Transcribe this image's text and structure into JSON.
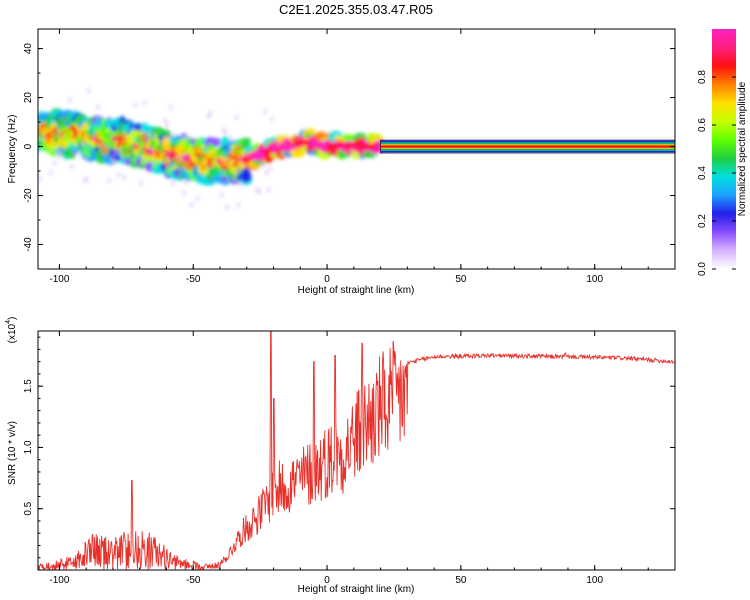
{
  "title": "C2E1.2025.355.03.47.R05",
  "chart_data": [
    {
      "type": "heatmap",
      "xlabel": "Height of straight line (km)",
      "ylabel": "Frequency (Hz)",
      "xlim": [
        -108,
        130
      ],
      "ylim": [
        -50,
        48
      ],
      "xticks": [
        -100,
        -50,
        0,
        50,
        100
      ],
      "yticks": [
        40,
        20,
        0,
        -20,
        -40
      ],
      "colorbar": {
        "label": "Normalized spectral amplitude",
        "range": [
          0,
          1
        ],
        "ticks": [
          "0.0",
          "0.2",
          "0.4",
          "0.6",
          "0.8"
        ],
        "colors": [
          "#ffffff",
          "#d6b3ff",
          "#8a4dff",
          "#2020e8",
          "#1ea0ff",
          "#00e0e0",
          "#20d040",
          "#60ff00",
          "#c8ff00",
          "#ffe000",
          "#ff8000",
          "#ff1010",
          "#ff2080",
          "#ff20c0"
        ]
      },
      "ridge": [
        {
          "x": -105,
          "y": 6
        },
        {
          "x": -95,
          "y": 5
        },
        {
          "x": -85,
          "y": 3
        },
        {
          "x": -75,
          "y": 2
        },
        {
          "x": -65,
          "y": -1
        },
        {
          "x": -55,
          "y": -4
        },
        {
          "x": -45,
          "y": -6
        },
        {
          "x": -35,
          "y": -6
        },
        {
          "x": -28,
          "y": -5
        },
        {
          "x": -20,
          "y": -1
        },
        {
          "x": -12,
          "y": 0.5
        },
        {
          "x": -8,
          "y": 1.5
        },
        {
          "x": 0,
          "y": 0.5
        },
        {
          "x": 10,
          "y": 0.3
        },
        {
          "x": 20,
          "y": 0
        },
        {
          "x": 130,
          "y": 0
        }
      ]
    },
    {
      "type": "line",
      "xlabel": "Height of straight line (km)",
      "ylabel": "SNR (10 * v/v)",
      "yscale_label": "(x10",
      "yscale_exp": "4",
      "yscale_close": ")",
      "xlim": [
        -108,
        130
      ],
      "ylim": [
        0,
        1.95
      ],
      "xticks": [
        -100,
        -50,
        0,
        50,
        100
      ],
      "yticks": [
        "0.5",
        "1.0",
        "1.5"
      ],
      "color": "#e8302a",
      "envelope": [
        {
          "x": -108,
          "y": 0.05
        },
        {
          "x": -95,
          "y": 0.12
        },
        {
          "x": -88,
          "y": 0.3
        },
        {
          "x": -80,
          "y": 0.28
        },
        {
          "x": -72,
          "y": 0.35
        },
        {
          "x": -65,
          "y": 0.3
        },
        {
          "x": -57,
          "y": 0.12
        },
        {
          "x": -45,
          "y": 0.05
        },
        {
          "x": -38,
          "y": 0.1
        },
        {
          "x": -32,
          "y": 0.35
        },
        {
          "x": -25,
          "y": 0.55
        },
        {
          "x": -20,
          "y": 0.75
        },
        {
          "x": -12,
          "y": 0.85
        },
        {
          "x": -5,
          "y": 0.95
        },
        {
          "x": 0,
          "y": 1.05
        },
        {
          "x": 5,
          "y": 1.1
        },
        {
          "x": 10,
          "y": 1.25
        },
        {
          "x": 15,
          "y": 1.4
        },
        {
          "x": 20,
          "y": 1.55
        },
        {
          "x": 28,
          "y": 1.68
        },
        {
          "x": 40,
          "y": 1.74
        },
        {
          "x": 60,
          "y": 1.75
        },
        {
          "x": 90,
          "y": 1.74
        },
        {
          "x": 110,
          "y": 1.73
        },
        {
          "x": 130,
          "y": 1.7
        }
      ],
      "spikes": [
        {
          "x": -73,
          "y": 0.73
        },
        {
          "x": -21,
          "y": 1.95
        },
        {
          "x": -20,
          "y": 1.4
        },
        {
          "x": -5,
          "y": 1.7
        },
        {
          "x": 3,
          "y": 1.75
        },
        {
          "x": 13,
          "y": 1.85
        },
        {
          "x": 89,
          "y": 1.77
        }
      ]
    }
  ]
}
